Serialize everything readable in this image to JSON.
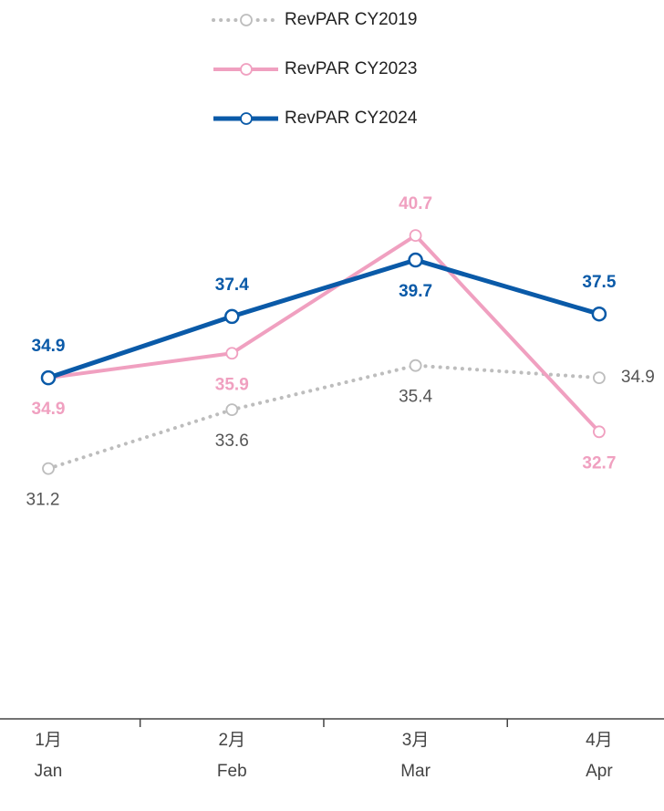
{
  "chart_data": {
    "type": "line",
    "categories": [
      [
        "1月",
        "Jan"
      ],
      [
        "2月",
        "Feb"
      ],
      [
        "3月",
        "Mar"
      ],
      [
        "4月",
        "Apr"
      ]
    ],
    "series": [
      {
        "name": "RevPAR CY2019",
        "color": "#bdbdbd",
        "style": "dotted",
        "values": [
          31.2,
          33.6,
          35.4,
          34.9
        ]
      },
      {
        "name": "RevPAR CY2023",
        "color": "#f0a0c0",
        "style": "solid",
        "values": [
          34.9,
          35.9,
          40.7,
          32.7
        ]
      },
      {
        "name": "RevPAR CY2024",
        "color": "#0a5aa8",
        "style": "solid",
        "values": [
          34.9,
          37.4,
          39.7,
          37.5
        ]
      }
    ],
    "ylim": [
      21,
      50
    ],
    "legend": "top"
  }
}
